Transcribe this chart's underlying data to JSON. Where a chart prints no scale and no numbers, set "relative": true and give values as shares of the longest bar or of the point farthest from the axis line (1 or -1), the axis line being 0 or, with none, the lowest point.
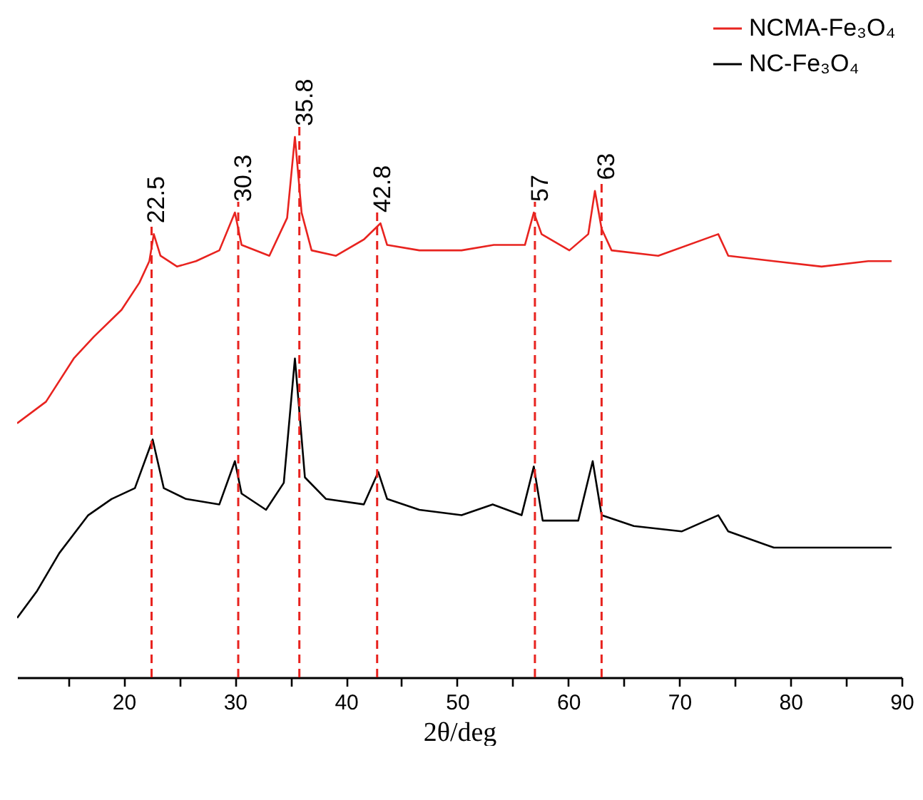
{
  "chart_data": {
    "type": "line",
    "relative": true,
    "xlabel": "2θ/deg",
    "legend": "top right",
    "grid": false,
    "xlim": [
      10.4,
      90
    ],
    "xticks": [
      {
        "value": 15,
        "label": null
      },
      20,
      {
        "value": 25,
        "label": null
      },
      30,
      {
        "value": 35,
        "label": null
      },
      40,
      {
        "value": 45,
        "label": null
      },
      50,
      {
        "value": 55,
        "label": null
      },
      60,
      {
        "value": 65,
        "label": null
      },
      70,
      {
        "value": 75,
        "label": null
      },
      80,
      {
        "value": 85,
        "label": null
      },
      90
    ],
    "series": [
      {
        "name": "NCMA-Fe₃O₄",
        "color": "#e8231f",
        "x": [
          10.4,
          13.0,
          15.5,
          17.3,
          19.8,
          21.4,
          22.3,
          22.7,
          23.3,
          24.8,
          26.5,
          28.6,
          30.0,
          30.6,
          33.1,
          34.7,
          35.4,
          36.0,
          36.9,
          39.1,
          41.6,
          43.1,
          43.7,
          46.6,
          50.4,
          53.3,
          56.1,
          56.9,
          57.6,
          60.1,
          61.8,
          62.4,
          63.0,
          63.9,
          68.1,
          73.5,
          74.4,
          78.5,
          82.8,
          87.0,
          89.1
        ],
        "values": [
          0.47,
          0.51,
          0.59,
          0.63,
          0.68,
          0.73,
          0.77,
          0.82,
          0.78,
          0.76,
          0.77,
          0.79,
          0.86,
          0.8,
          0.78,
          0.85,
          1,
          0.86,
          0.79,
          0.78,
          0.81,
          0.84,
          0.8,
          0.79,
          0.79,
          0.8,
          0.8,
          0.86,
          0.82,
          0.79,
          0.82,
          0.9,
          0.83,
          0.79,
          0.78,
          0.82,
          0.78,
          0.77,
          0.76,
          0.77,
          0.77
        ]
      },
      {
        "name": "NC-Fe₃O₄",
        "color": "#000000",
        "x": [
          10.4,
          12.2,
          14.2,
          16.8,
          18.9,
          21.0,
          22.6,
          23.6,
          25.6,
          28.6,
          30.0,
          30.6,
          32.8,
          34.4,
          35.4,
          36.3,
          38.2,
          41.6,
          42.9,
          43.7,
          46.6,
          50.4,
          53.2,
          55.8,
          56.9,
          57.7,
          60.9,
          62.2,
          63.0,
          65.9,
          70.2,
          73.5,
          74.4,
          78.5,
          82.8,
          87.0,
          89.1
        ],
        "values": [
          0.11,
          0.16,
          0.23,
          0.3,
          0.33,
          0.35,
          0.44,
          0.35,
          0.33,
          0.32,
          0.4,
          0.34,
          0.31,
          0.36,
          0.59,
          0.37,
          0.33,
          0.32,
          0.38,
          0.33,
          0.31,
          0.3,
          0.32,
          0.3,
          0.39,
          0.29,
          0.29,
          0.4,
          0.3,
          0.28,
          0.27,
          0.3,
          0.27,
          0.24,
          0.24,
          0.24,
          0.24
        ]
      }
    ],
    "ref_lines": [
      {
        "axis": "x",
        "value": 22.5,
        "label": "22.5",
        "color": "#e8231f",
        "line_style": "dashed"
      },
      {
        "axis": "x",
        "value": 30.3,
        "label": "30.3",
        "color": "#e8231f",
        "line_style": "dashed"
      },
      {
        "axis": "x",
        "value": 35.8,
        "label": "35.8",
        "color": "#e8231f",
        "line_style": "dashed"
      },
      {
        "axis": "x",
        "value": 42.8,
        "label": "42.8",
        "color": "#e8231f",
        "line_style": "dashed"
      },
      {
        "axis": "x",
        "value": 57,
        "label": "57",
        "color": "#e8231f",
        "line_style": "dashed"
      },
      {
        "axis": "x",
        "value": 63,
        "label": "63",
        "color": "#e8231f",
        "line_style": "dashed"
      }
    ]
  }
}
